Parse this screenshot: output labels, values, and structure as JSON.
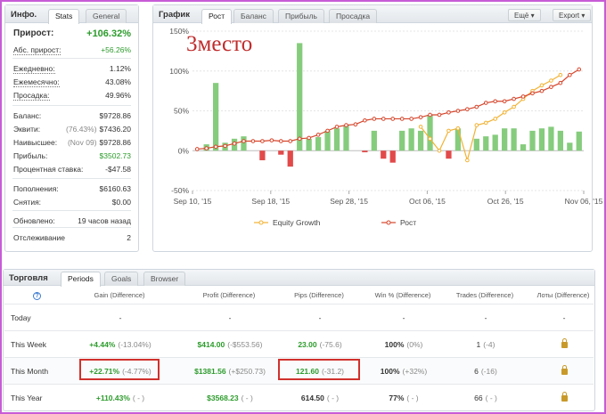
{
  "info": {
    "title": "Инфо.",
    "tabs": [
      {
        "label": "Stats"
      },
      {
        "label": "General"
      }
    ],
    "rows": [
      {
        "label": "Прирост:",
        "value": "+106.32%"
      },
      {
        "label": "Абс. прирост:",
        "value": "+56.26%"
      },
      {
        "label": "Ежедневно:",
        "value": "1.12%"
      },
      {
        "label": "Ежемесячно:",
        "value": "43.08%"
      },
      {
        "label": "Просадка:",
        "value": "49.96%"
      },
      {
        "label": "Баланс:",
        "value": "$9728.86"
      },
      {
        "label": "Эквити:",
        "sub": "(76.43%)",
        "value": "$7436.20"
      },
      {
        "label": "Наивысшее:",
        "sub": "(Nov 09)",
        "value": "$9728.86"
      },
      {
        "label": "Прибыль:",
        "value": "$3502.73"
      },
      {
        "label": "Процентная ставка:",
        "value": "-$47.58"
      },
      {
        "label": "Пополнения:",
        "value": "$6160.63"
      },
      {
        "label": "Снятия:",
        "value": "$0.00"
      },
      {
        "label": "Обновлено:",
        "value": "19 часов назад"
      },
      {
        "label": "Отслеживание",
        "value": "2"
      }
    ]
  },
  "graph": {
    "title": "График",
    "tabs": [
      {
        "label": "Рост"
      },
      {
        "label": "Баланс"
      },
      {
        "label": "Прибыль"
      },
      {
        "label": "Просадка"
      }
    ],
    "buttons": {
      "more": "Ещё",
      "export": "Export"
    },
    "overlay_text": "3место"
  },
  "chart_data": {
    "type": "bar",
    "x_ticks": [
      "Sep 10, '15",
      "Sep 18, '15",
      "Sep 28, '15",
      "Oct 06, '15",
      "Oct 26, '15",
      "Nov 06, '15"
    ],
    "x_tick_index": [
      0,
      11,
      22,
      33,
      44,
      55
    ],
    "y_ticks": [
      "150%",
      "100%",
      "50%",
      "0%",
      "-50%"
    ],
    "ylim": [
      -50,
      150
    ],
    "bars": [
      0,
      8,
      85,
      10,
      15,
      18,
      0,
      -12,
      0,
      -5,
      -20,
      135,
      15,
      17,
      25,
      28,
      32,
      0,
      -2,
      25,
      -10,
      -15,
      25,
      28,
      25,
      45,
      0,
      -10,
      28,
      0,
      15,
      18,
      20,
      28,
      28,
      8,
      25,
      28,
      30,
      25,
      10,
      24
    ],
    "series": [
      {
        "name": "Equity Growth",
        "color": "#f2b233",
        "x_index": [
          24,
          25,
          26,
          27,
          28,
          29,
          30,
          31,
          32,
          33,
          34,
          35,
          36,
          37,
          38,
          39
        ],
        "values": [
          30,
          15,
          0,
          25,
          28,
          -12,
          32,
          35,
          40,
          48,
          55,
          65,
          75,
          82,
          88,
          95
        ]
      },
      {
        "name": "Рост",
        "color": "#d6452b",
        "values": [
          2,
          3,
          5,
          6,
          9,
          12,
          12,
          12,
          13,
          12,
          12,
          15,
          16,
          20,
          25,
          30,
          32,
          33,
          38,
          40,
          40,
          40,
          40,
          40,
          42,
          45,
          45,
          48,
          50,
          52,
          55,
          60,
          62,
          62,
          65,
          68,
          72,
          75,
          80,
          85,
          95,
          102
        ]
      }
    ],
    "legend_position": "bottom-center"
  },
  "trading": {
    "title": "Торговля",
    "tabs": [
      {
        "label": "Periods"
      },
      {
        "label": "Goals"
      },
      {
        "label": "Browser"
      }
    ],
    "headers": [
      "Gain (Difference)",
      "Profit (Difference)",
      "Pips (Difference)",
      "Win % (Difference)",
      "Trades (Difference)",
      "Лоты (Difference)"
    ],
    "rows": [
      {
        "period": "Today",
        "gain": "-",
        "gain_diff": "",
        "profit": "-",
        "profit_diff": "",
        "pips": "-",
        "pips_diff": "",
        "win": "-",
        "win_diff": "",
        "trades": "-",
        "trades_diff": "",
        "lots": "-"
      },
      {
        "period": "This Week",
        "gain": "+4.44%",
        "gain_diff": "(-13.04%)",
        "profit": "$414.00",
        "profit_diff": "(-$553.56)",
        "pips": "23.00",
        "pips_diff": "(-75.6)",
        "win": "100%",
        "win_diff": "(0%)",
        "trades": "1",
        "trades_diff": "(-4)",
        "lots": "lock"
      },
      {
        "period": "This Month",
        "gain": "+22.71%",
        "gain_diff": "(-4.77%)",
        "profit": "$1381.56",
        "profit_diff": "(+$250.73)",
        "pips": "121.60",
        "pips_diff": "(-31.2)",
        "win": "100%",
        "win_diff": "(+32%)",
        "trades": "6",
        "trades_diff": "(-16)",
        "lots": "lock"
      },
      {
        "period": "This Year",
        "gain": "+110.43%",
        "gain_diff": "( - )",
        "profit": "$3568.23",
        "profit_diff": "( - )",
        "pips": "614.50",
        "pips_diff": "( - )",
        "win": "77%",
        "win_diff": "( - )",
        "trades": "66",
        "trades_diff": "( - )",
        "lots": "lock"
      }
    ]
  }
}
